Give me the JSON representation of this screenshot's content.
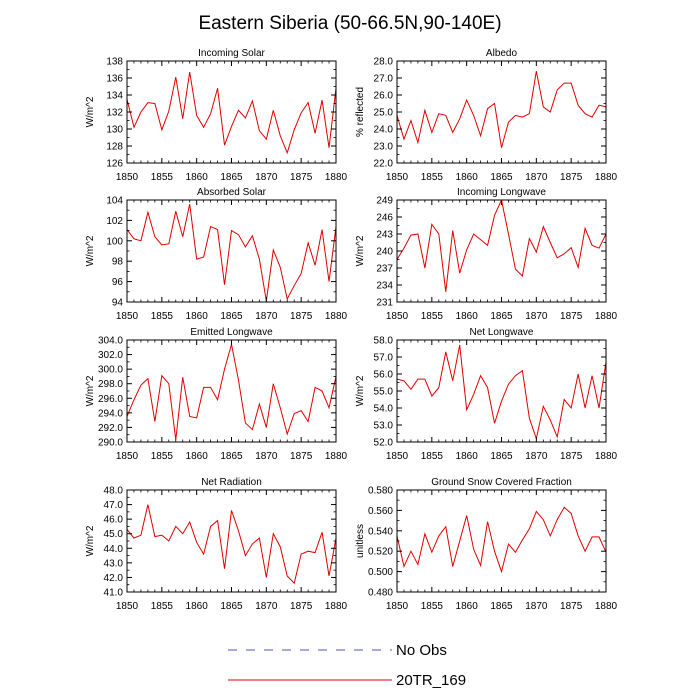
{
  "figure_title": "Eastern Siberia (50-66.5N,90-140E)",
  "legend": [
    {
      "label": "No Obs",
      "color": "#4a55b5",
      "dashed": true
    },
    {
      "label": "20TR_169",
      "color": "#e00000",
      "dashed": false
    }
  ],
  "chart_data": [
    {
      "type": "line",
      "title": "Incoming Solar",
      "ylabel": "W/m^2",
      "xlim": [
        1850,
        1880
      ],
      "ylim": [
        126,
        138
      ],
      "xticks": [
        1850,
        1855,
        1860,
        1865,
        1870,
        1875,
        1880
      ],
      "xtick_labels": [
        "1850",
        "1855",
        "1860",
        "1865",
        "1870",
        "1875",
        "1880"
      ],
      "yticks": [
        126,
        128,
        130,
        132,
        134,
        136,
        138
      ],
      "ytick_labels": [
        "126",
        "128",
        "130",
        "132",
        "134",
        "136",
        "138"
      ],
      "x_start": 1850,
      "series": [
        {
          "name": "20TR_169",
          "color": "#e00000",
          "values": [
            133.5,
            130.2,
            132.0,
            133.1,
            133.0,
            129.9,
            132.1,
            136.1,
            131.2,
            136.7,
            131.6,
            130.2,
            131.8,
            134.8,
            128.1,
            130.3,
            132.2,
            131.3,
            133.3,
            129.8,
            128.8,
            132.2,
            129.2,
            127.2,
            129.9,
            131.9,
            133.1,
            129.5,
            133.4,
            127.8,
            134.8
          ]
        }
      ]
    },
    {
      "type": "line",
      "title": "Albedo",
      "ylabel": "% reflected",
      "xlim": [
        1850,
        1880
      ],
      "ylim": [
        22,
        28
      ],
      "xticks": [
        1850,
        1855,
        1860,
        1865,
        1870,
        1875,
        1880
      ],
      "xtick_labels": [
        "1850",
        "1855",
        "1860",
        "1865",
        "1870",
        "1875",
        "1880"
      ],
      "yticks": [
        22,
        23,
        24,
        25,
        26,
        27,
        28
      ],
      "ytick_labels": [
        "22.0",
        "23.0",
        "24.0",
        "25.0",
        "26.0",
        "27.0",
        "28.0"
      ],
      "x_start": 1850,
      "series": [
        {
          "name": "20TR_169",
          "color": "#e00000",
          "values": [
            24.8,
            23.4,
            24.5,
            23.2,
            25.1,
            23.8,
            24.9,
            24.8,
            23.8,
            24.6,
            25.7,
            24.8,
            23.6,
            25.2,
            25.5,
            22.9,
            24.4,
            24.8,
            24.7,
            24.9,
            27.4,
            25.3,
            25.0,
            26.3,
            26.7,
            26.7,
            25.4,
            24.9,
            24.7,
            25.4,
            25.3
          ]
        }
      ]
    },
    {
      "type": "line",
      "title": "Absorbed Solar",
      "ylabel": "W/m^2",
      "xlim": [
        1850,
        1880
      ],
      "ylim": [
        94,
        104
      ],
      "xticks": [
        1850,
        1855,
        1860,
        1865,
        1870,
        1875,
        1880
      ],
      "xtick_labels": [
        "1850",
        "1855",
        "1860",
        "1865",
        "1870",
        "1875",
        "1880"
      ],
      "yticks": [
        94,
        96,
        98,
        100,
        102,
        104
      ],
      "ytick_labels": [
        "94",
        "96",
        "98",
        "100",
        "102",
        "104"
      ],
      "x_start": 1850,
      "series": [
        {
          "name": "20TR_169",
          "color": "#e00000",
          "values": [
            101.1,
            100.2,
            100.0,
            102.8,
            100.4,
            99.6,
            99.7,
            102.9,
            100.4,
            103.6,
            98.2,
            98.4,
            101.4,
            101.1,
            95.7,
            101.0,
            100.6,
            99.4,
            100.5,
            98.2,
            94.1,
            99.1,
            97.4,
            94.3,
            95.6,
            96.8,
            99.8,
            97.6,
            101.1,
            96.0,
            101.4
          ]
        }
      ]
    },
    {
      "type": "line",
      "title": "Incoming Longwave",
      "ylabel": "W/m^2",
      "xlim": [
        1850,
        1880
      ],
      "ylim": [
        231,
        249
      ],
      "xticks": [
        1850,
        1855,
        1860,
        1865,
        1870,
        1875,
        1880
      ],
      "xtick_labels": [
        "1850",
        "1855",
        "1860",
        "1865",
        "1870",
        "1875",
        "1880"
      ],
      "yticks": [
        231,
        234,
        237,
        240,
        243,
        246,
        249
      ],
      "ytick_labels": [
        "231",
        "234",
        "237",
        "240",
        "243",
        "246",
        "249"
      ],
      "x_start": 1850,
      "series": [
        {
          "name": "20TR_169",
          "color": "#e00000",
          "values": [
            238.5,
            240.5,
            242.8,
            243.0,
            237.0,
            244.7,
            243.0,
            232.8,
            243.6,
            236.1,
            240.2,
            243.0,
            242.0,
            241.0,
            246.3,
            249.0,
            243.0,
            236.8,
            235.6,
            242.2,
            239.8,
            244.3,
            241.5,
            238.8,
            239.5,
            240.6,
            237.1,
            244.0,
            241.0,
            240.5,
            243.0
          ]
        }
      ]
    },
    {
      "type": "line",
      "title": "Emitted Longwave",
      "ylabel": "W/m^2",
      "xlim": [
        1850,
        1880
      ],
      "ylim": [
        290,
        304
      ],
      "xticks": [
        1850,
        1855,
        1860,
        1865,
        1870,
        1875,
        1880
      ],
      "xtick_labels": [
        "1850",
        "1855",
        "1860",
        "1865",
        "1870",
        "1875",
        "1880"
      ],
      "yticks": [
        290,
        292,
        294,
        296,
        298,
        300,
        302,
        304
      ],
      "ytick_labels": [
        "290.0",
        "292.0",
        "294.0",
        "296.0",
        "298.0",
        "300.0",
        "302.0",
        "304.0"
      ],
      "x_start": 1850,
      "series": [
        {
          "name": "20TR_169",
          "color": "#e00000",
          "values": [
            293.5,
            295.8,
            297.8,
            298.7,
            292.8,
            299.1,
            298.0,
            290.3,
            298.9,
            293.5,
            293.3,
            297.5,
            297.5,
            295.8,
            300.0,
            303.4,
            298.5,
            292.6,
            291.7,
            295.2,
            292.0,
            298.0,
            294.7,
            291.1,
            293.9,
            294.3,
            292.8,
            297.5,
            297.0,
            294.7,
            299.0
          ]
        }
      ]
    },
    {
      "type": "line",
      "title": "Net Longwave",
      "ylabel": "W/m^2",
      "xlim": [
        1850,
        1880
      ],
      "ylim": [
        52,
        58
      ],
      "xticks": [
        1850,
        1855,
        1860,
        1865,
        1870,
        1875,
        1880
      ],
      "xtick_labels": [
        "1850",
        "1855",
        "1860",
        "1865",
        "1870",
        "1875",
        "1880"
      ],
      "yticks": [
        52,
        53,
        54,
        55,
        56,
        57,
        58
      ],
      "ytick_labels": [
        "52.0",
        "53.0",
        "54.0",
        "55.0",
        "56.0",
        "57.0",
        "58.0"
      ],
      "x_start": 1850,
      "series": [
        {
          "name": "20TR_169",
          "color": "#e00000",
          "values": [
            55.7,
            55.6,
            55.1,
            55.7,
            55.7,
            54.7,
            55.2,
            57.3,
            55.6,
            57.7,
            53.9,
            54.8,
            55.9,
            55.2,
            53.1,
            54.4,
            55.4,
            55.9,
            56.2,
            53.4,
            52.2,
            54.1,
            53.3,
            52.3,
            54.5,
            54.0,
            56.0,
            54.0,
            55.9,
            54.0,
            56.7
          ]
        }
      ]
    },
    {
      "type": "line",
      "title": "Net Radiation",
      "ylabel": "W/m^2",
      "xlim": [
        1850,
        1880
      ],
      "ylim": [
        41,
        48
      ],
      "xticks": [
        1850,
        1855,
        1860,
        1865,
        1870,
        1875,
        1880
      ],
      "xtick_labels": [
        "1850",
        "1855",
        "1860",
        "1865",
        "1870",
        "1875",
        "1880"
      ],
      "yticks": [
        41,
        42,
        43,
        44,
        45,
        46,
        47,
        48
      ],
      "ytick_labels": [
        "41.0",
        "42.0",
        "43.0",
        "44.0",
        "45.0",
        "46.0",
        "47.0",
        "48.0"
      ],
      "x_start": 1850,
      "series": [
        {
          "name": "20TR_169",
          "color": "#e00000",
          "values": [
            45.3,
            44.7,
            44.9,
            47.0,
            44.8,
            44.9,
            44.5,
            45.5,
            45.0,
            45.8,
            44.4,
            43.6,
            45.5,
            45.9,
            42.6,
            46.6,
            45.2,
            43.5,
            44.3,
            44.7,
            42.0,
            45.0,
            44.1,
            42.1,
            41.6,
            43.6,
            43.8,
            43.7,
            45.1,
            42.1,
            44.7
          ]
        }
      ]
    },
    {
      "type": "line",
      "title": "Ground Snow Covered Fraction",
      "ylabel": "unitless",
      "xlim": [
        1850,
        1880
      ],
      "ylim": [
        0.48,
        0.58
      ],
      "xticks": [
        1850,
        1855,
        1860,
        1865,
        1870,
        1875,
        1880
      ],
      "xtick_labels": [
        "1850",
        "1855",
        "1860",
        "1865",
        "1870",
        "1875",
        "1880"
      ],
      "yticks": [
        0.48,
        0.5,
        0.52,
        0.54,
        0.56,
        0.58
      ],
      "ytick_labels": [
        "0.480",
        "0.500",
        "0.520",
        "0.540",
        "0.560",
        "0.580"
      ],
      "x_start": 1850,
      "series": [
        {
          "name": "20TR_169",
          "color": "#e00000",
          "values": [
            0.535,
            0.505,
            0.52,
            0.507,
            0.537,
            0.519,
            0.535,
            0.544,
            0.505,
            0.53,
            0.555,
            0.522,
            0.506,
            0.549,
            0.52,
            0.5,
            0.527,
            0.519,
            0.531,
            0.542,
            0.559,
            0.551,
            0.535,
            0.551,
            0.563,
            0.557,
            0.535,
            0.52,
            0.534,
            0.534,
            0.519
          ]
        }
      ]
    }
  ]
}
